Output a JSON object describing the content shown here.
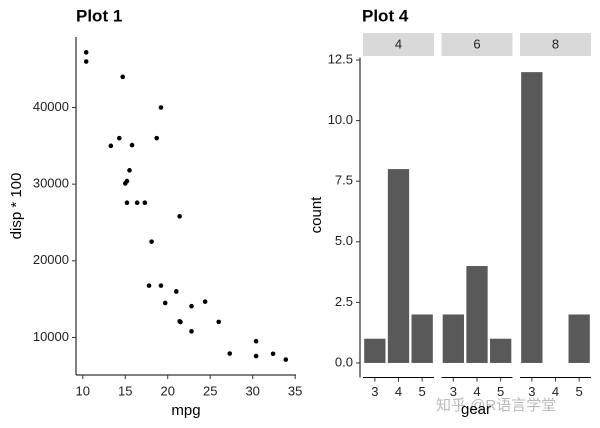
{
  "chart_data": [
    {
      "type": "scatter",
      "title": "Plot 1",
      "x_label": "mpg",
      "y_label": "disp * 100",
      "color": "#000000",
      "x": [
        21.0,
        21.0,
        22.8,
        21.4,
        18.7,
        18.1,
        14.3,
        24.4,
        22.8,
        19.2,
        17.8,
        16.4,
        17.3,
        15.2,
        10.4,
        10.4,
        14.7,
        32.4,
        30.4,
        33.9,
        21.5,
        15.5,
        15.2,
        13.3,
        19.2,
        27.3,
        26.0,
        30.4,
        15.8,
        19.7,
        15.0,
        21.4
      ],
      "values": [
        16000,
        16000,
        10800,
        25800,
        36000,
        22500,
        36000,
        14670,
        14080,
        16760,
        16760,
        27580,
        27580,
        27580,
        47200,
        46000,
        44000,
        7870,
        7570,
        7110,
        12010,
        31800,
        30400,
        35000,
        40000,
        7900,
        12030,
        9510,
        35100,
        14500,
        30100,
        12100
      ],
      "xlim": [
        9.2,
        35.1
      ],
      "xticks": [
        10,
        15,
        20,
        25,
        30,
        35
      ],
      "ylim": [
        5100,
        49200
      ],
      "yticks": [
        10000,
        20000,
        30000,
        40000
      ]
    },
    {
      "type": "bar",
      "title": "Plot 4",
      "x_label": "gear",
      "y_label": "count",
      "color": "#595959",
      "facets": [
        {
          "label": "4",
          "categories": [
            "3",
            "4",
            "5"
          ],
          "values": [
            1,
            8,
            2
          ]
        },
        {
          "label": "6",
          "categories": [
            "3",
            "4",
            "5"
          ],
          "values": [
            2,
            4,
            1
          ]
        },
        {
          "label": "8",
          "categories": [
            "3",
            "4",
            "5"
          ],
          "values": [
            12,
            null,
            2
          ]
        }
      ],
      "ylim": [
        -0.6,
        12.6
      ],
      "yticks": [
        {
          "value": 0,
          "label": "0.0"
        },
        2.5,
        {
          "value": 5,
          "label": "5.0"
        },
        7.5,
        {
          "value": 10,
          "label": "10.0"
        },
        12.5
      ]
    }
  ],
  "watermark": "知乎 @R语言学堂"
}
